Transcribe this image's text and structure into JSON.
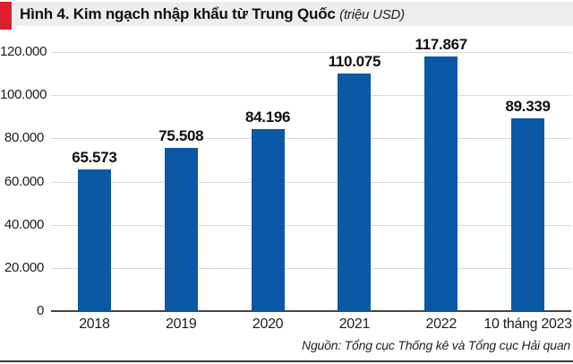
{
  "figure": {
    "title_main": "Hình 4. Kim ngạch nhập khẩu từ Trung Quốc",
    "title_unit": "(triệu USD)",
    "source": "Nguồn: Tổng cục Thống kê và Tổng cục Hải quan"
  },
  "colors": {
    "bar": "#0a58a6",
    "accent_red": "#da1f2d",
    "band_bg": "#ededed",
    "gridline": "#d8d8d8",
    "axis": "#454545",
    "text": "#1c1c1c",
    "bottom_rule": "#3d3d3d"
  },
  "chart_data": {
    "type": "bar",
    "title": "Hình 4. Kim ngạch nhập khẩu từ Trung Quốc",
    "unit": "triệu USD",
    "categories": [
      "2018",
      "2019",
      "2020",
      "2021",
      "2022",
      "10 tháng 2023"
    ],
    "values": [
      65573,
      75508,
      84196,
      110075,
      117867,
      89339
    ],
    "value_labels": [
      "65.573",
      "75.508",
      "84.196",
      "110.075",
      "117.867",
      "89.339"
    ],
    "xlabel": "",
    "ylabel": "",
    "ylim": [
      0,
      120000
    ],
    "yticks": [
      0,
      20000,
      40000,
      60000,
      80000,
      100000,
      120000
    ],
    "ytick_labels": [
      "0",
      "20.000",
      "40.000",
      "60.000",
      "80.000",
      "100.000",
      "120.000"
    ],
    "grid": true,
    "legend": false
  }
}
